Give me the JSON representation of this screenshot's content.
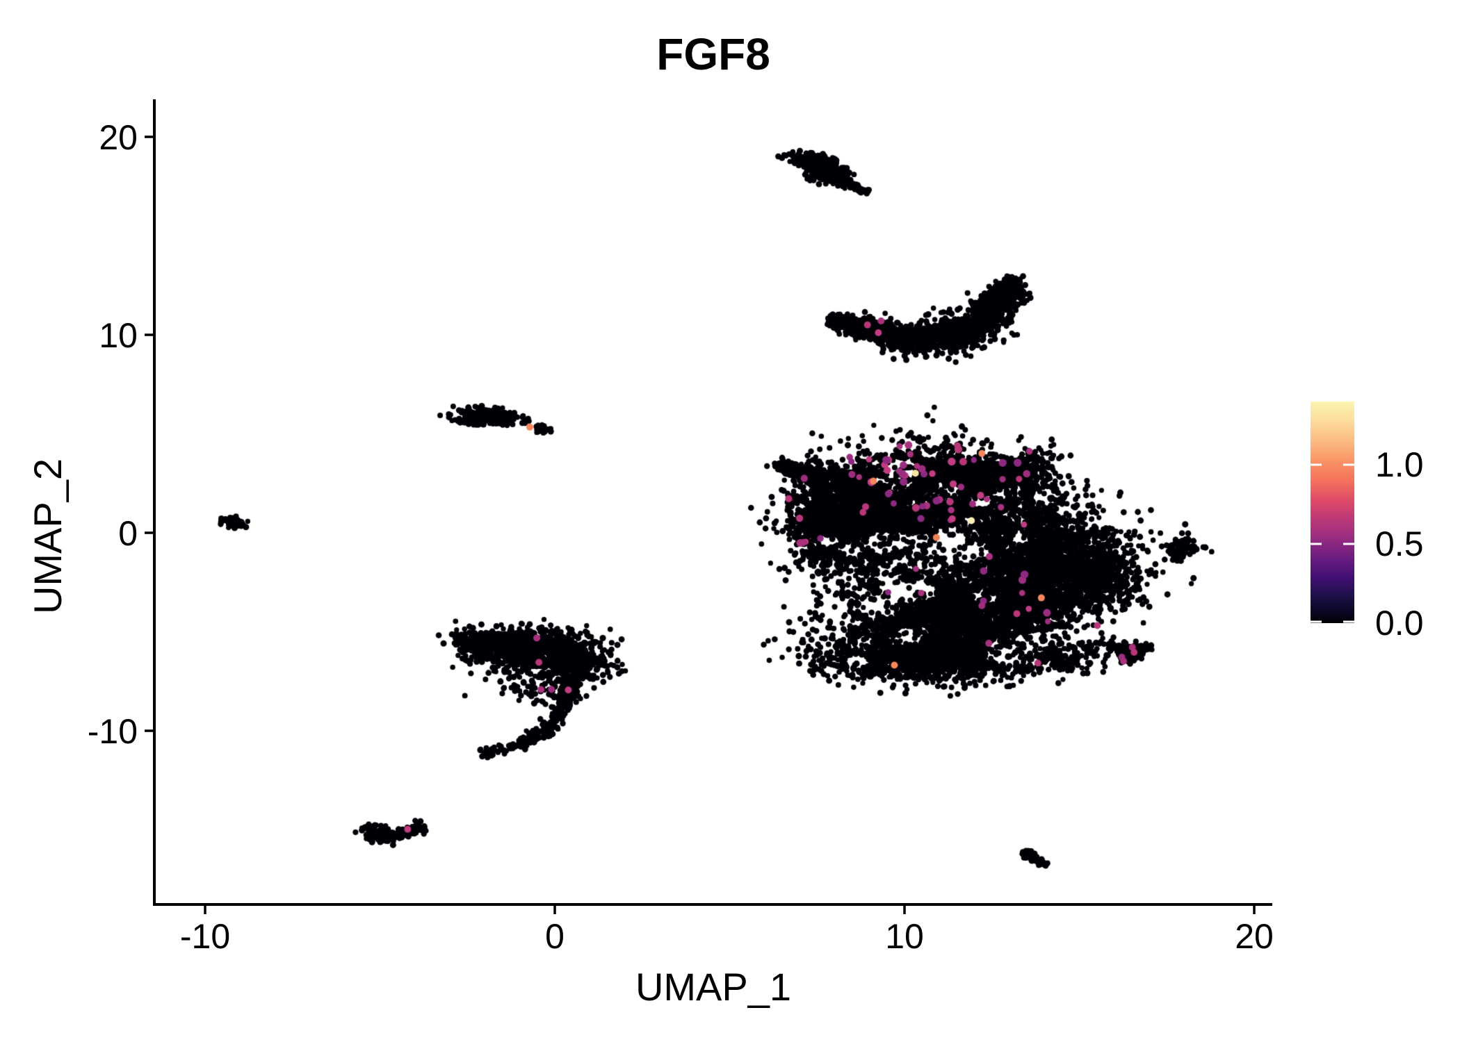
{
  "title": "FGF8",
  "axes": {
    "x": {
      "label": "UMAP_1",
      "tick_labels": [
        "-10",
        "0",
        "10",
        "20"
      ]
    },
    "y": {
      "label": "UMAP_2",
      "tick_labels": [
        "20",
        "10",
        "0",
        "-10"
      ]
    }
  },
  "legend": {
    "tick_labels": [
      "1.0",
      "0.5",
      "0.0"
    ]
  },
  "chart_data": {
    "type": "scatter",
    "title": "FGF8",
    "xlabel": "UMAP_1",
    "ylabel": "UMAP_2",
    "xlim": [
      -11.45,
      20.5
    ],
    "ylim": [
      -18.8,
      21.9
    ],
    "x_ticks": [
      -10,
      0,
      10,
      20
    ],
    "y_ticks": [
      20,
      10,
      0,
      -10
    ],
    "grid": false,
    "legend_position": "right",
    "point_color_default": "#000006",
    "colorbar": {
      "min": 0.0,
      "max": 1.4,
      "ticks": [
        1.0,
        0.5,
        0.0
      ],
      "gradient_top_to_bottom": [
        {
          "offset": 0.0,
          "color": "#FCF4B0"
        },
        {
          "offset": 0.08,
          "color": "#FDDE9D"
        },
        {
          "offset": 0.16,
          "color": "#FCC286"
        },
        {
          "offset": 0.23,
          "color": "#FAA671"
        },
        {
          "offset": 0.282,
          "color": "#F98E62"
        },
        {
          "offset": 0.36,
          "color": "#F4715C"
        },
        {
          "offset": 0.45,
          "color": "#DE4968"
        },
        {
          "offset": 0.52,
          "color": "#C03A76"
        },
        {
          "offset": 0.58,
          "color": "#A8327D"
        },
        {
          "offset": 0.641,
          "color": "#8B2880"
        },
        {
          "offset": 0.72,
          "color": "#641A80"
        },
        {
          "offset": 0.8,
          "color": "#3F0F72"
        },
        {
          "offset": 0.88,
          "color": "#1D1147"
        },
        {
          "offset": 0.95,
          "color": "#0A0723"
        },
        {
          "offset": 1.0,
          "color": "#000004"
        }
      ]
    },
    "palettes": {
      "magenta": [
        "#A8327D",
        "#B73779",
        "#9C2E7F",
        "#C23C82",
        "#8C2981"
      ],
      "orange": [
        "#F8875E",
        "#F07F52"
      ],
      "cream": [
        "#FBE3A4",
        "#FCEFB6"
      ]
    },
    "seed": 12345,
    "point_radius": 4.1,
    "highlight_radius": 5.0,
    "clusters": [
      {
        "name": "comet-top",
        "components": [
          {
            "t": "g",
            "cx": 7.45,
            "cy": 18.7,
            "sx": 0.42,
            "sy": 0.2,
            "rot": -28,
            "n": 230
          },
          {
            "t": "g",
            "cx": 7.8,
            "cy": 18.15,
            "sx": 0.28,
            "sy": 0.22,
            "rot": 0,
            "n": 120
          },
          {
            "t": "c",
            "pts": [
              [
                7.95,
                17.95
              ],
              [
                8.5,
                17.55
              ],
              [
                8.9,
                17.2
              ]
            ],
            "w": [
              0.12,
              0.06
            ],
            "n": 90
          }
        ]
      },
      {
        "name": "crescent",
        "components": [
          {
            "t": "c",
            "pts": [
              [
                7.95,
                10.75
              ],
              [
                9.2,
                10.2
              ],
              [
                10.6,
                9.65
              ],
              [
                11.9,
                10.3
              ],
              [
                12.75,
                11.6
              ],
              [
                13.1,
                12.75
              ]
            ],
            "w": [
              0.12,
              0.3,
              0.42,
              0.45,
              0.3,
              0.15
            ],
            "n": 1500
          }
        ]
      },
      {
        "name": "small-left",
        "components": [
          {
            "t": "g",
            "cx": -1.95,
            "cy": 5.9,
            "sx": 0.48,
            "sy": 0.2,
            "rot": -8,
            "n": 210
          },
          {
            "t": "g",
            "cx": -2.35,
            "cy": 5.65,
            "sx": 0.18,
            "sy": 0.14,
            "rot": 0,
            "n": 40
          },
          {
            "t": "c",
            "pts": [
              [
                -0.5,
                5.28
              ],
              [
                -0.16,
                5.12
              ]
            ],
            "w": [
              0.09,
              0.09
            ],
            "n": 22
          }
        ]
      },
      {
        "name": "tiny-far-left",
        "components": [
          {
            "t": "g",
            "cx": -9.17,
            "cy": 0.5,
            "sx": 0.2,
            "sy": 0.12,
            "rot": -25,
            "n": 45
          }
        ]
      },
      {
        "name": "main-right",
        "holes": {
          "n": 30,
          "x": [
            7.6,
            15.8
          ],
          "y": [
            -6.8,
            4.2
          ],
          "r": [
            0.28,
            0.62
          ],
          "drop": 0.82
        },
        "components": [
          {
            "t": "c",
            "pts": [
              [
                6.45,
                3.45
              ],
              [
                7.3,
                2.9
              ],
              [
                8.2,
                2.35
              ]
            ],
            "w": [
              0.1,
              0.45
            ],
            "n": 300
          },
          {
            "t": "g",
            "cx": 10.9,
            "cy": 2.1,
            "sx": 1.5,
            "sy": 1.1,
            "rot": 0,
            "n": 2700
          },
          {
            "t": "g",
            "cx": 12.6,
            "cy": 3.3,
            "sx": 0.75,
            "sy": 0.55,
            "rot": 0,
            "n": 450
          },
          {
            "t": "g",
            "cx": 8.6,
            "cy": 0.1,
            "sx": 0.95,
            "sy": 1.15,
            "rot": 0,
            "n": 1250
          },
          {
            "t": "g",
            "cx": 9.6,
            "cy": 1.4,
            "sx": 0.8,
            "sy": 0.8,
            "rot": 0,
            "n": 600
          },
          {
            "t": "g",
            "cx": 7.4,
            "cy": 0.8,
            "sx": 0.45,
            "sy": 0.9,
            "rot": 0,
            "n": 250
          },
          {
            "t": "g",
            "cx": 13.9,
            "cy": -1.3,
            "sx": 1.15,
            "sy": 1.35,
            "rot": 0,
            "n": 1600
          },
          {
            "t": "g",
            "cx": 15.6,
            "cy": -2.2,
            "sx": 0.6,
            "sy": 0.75,
            "rot": 0,
            "n": 380
          },
          {
            "t": "g",
            "cx": 13.4,
            "cy": -3.1,
            "sx": 1.2,
            "sy": 0.9,
            "rot": 0,
            "n": 650
          },
          {
            "t": "g",
            "cx": 11.2,
            "cy": -4.3,
            "sx": 1.55,
            "sy": 1.25,
            "rot": 0,
            "n": 2600
          },
          {
            "t": "g",
            "cx": 10.7,
            "cy": -6.4,
            "sx": 1.5,
            "sy": 0.5,
            "rot": 0,
            "n": 1250
          },
          {
            "t": "c",
            "pts": [
              [
                13.0,
                -5.3
              ],
              [
                14.8,
                -6.2
              ],
              [
                16.2,
                -6.2
              ],
              [
                16.85,
                -5.85
              ]
            ],
            "w": [
              0.5,
              0.12
            ],
            "n": 750
          }
        ]
      },
      {
        "name": "small-right",
        "components": [
          {
            "t": "g",
            "cx": 17.9,
            "cy": -0.75,
            "sx": 0.3,
            "sy": 0.26,
            "rot": 0,
            "n": 70
          },
          {
            "t": "c",
            "pts": [
              [
                17.85,
                -1.0
              ],
              [
                17.8,
                -1.45
              ]
            ],
            "w": [
              0.1,
              0.07
            ],
            "n": 18
          }
        ]
      },
      {
        "name": "hook-mid-left",
        "components": [
          {
            "t": "g",
            "cx": -1.3,
            "cy": -5.8,
            "sx": 0.75,
            "sy": 0.45,
            "rot": 0,
            "n": 420
          },
          {
            "t": "g",
            "cx": 0.0,
            "cy": -5.9,
            "sx": 0.7,
            "sy": 0.5,
            "rot": 0,
            "n": 420
          },
          {
            "t": "g",
            "cx": -2.0,
            "cy": -5.6,
            "sx": 0.45,
            "sy": 0.3,
            "rot": 0,
            "n": 180
          },
          {
            "t": "g",
            "cx": 0.6,
            "cy": -6.7,
            "sx": 0.5,
            "sy": 0.45,
            "rot": 0,
            "n": 200
          },
          {
            "t": "g",
            "cx": -0.3,
            "cy": -7.5,
            "sx": 0.8,
            "sy": 0.55,
            "rot": 0,
            "n": 130
          },
          {
            "t": "c",
            "pts": [
              [
                0.5,
                -7.2
              ],
              [
                0.3,
                -8.6
              ],
              [
                -0.2,
                -9.9
              ],
              [
                -1.2,
                -10.9
              ],
              [
                -2.1,
                -11.15
              ]
            ],
            "w": [
              0.18,
              0.1
            ],
            "n": 270
          }
        ]
      },
      {
        "name": "v-bottom-left",
        "components": [
          {
            "t": "c",
            "pts": [
              [
                -5.3,
                -14.85
              ],
              [
                -4.8,
                -15.35
              ],
              [
                -4.2,
                -15.15
              ],
              [
                -3.85,
                -14.85
              ]
            ],
            "w": [
              0.16,
              0.12
            ],
            "n": 150
          },
          {
            "t": "g",
            "cx": -4.85,
            "cy": -15.35,
            "sx": 0.25,
            "sy": 0.18,
            "rot": 0,
            "n": 60
          }
        ]
      },
      {
        "name": "streak-bottom-right",
        "components": [
          {
            "t": "c",
            "pts": [
              [
                13.45,
                -16.15
              ],
              [
                14.0,
                -16.8
              ]
            ],
            "w": [
              0.1,
              0.07
            ],
            "n": 55
          }
        ]
      }
    ],
    "highlight_regions": [
      {
        "x": [
          8.3,
          13.6
        ],
        "y": [
          0.3,
          4.5
        ],
        "count": 55,
        "palette": "magenta"
      },
      {
        "x": [
          6.6,
          7.7
        ],
        "y": [
          -0.6,
          3.0
        ],
        "count": 6,
        "palette": "magenta"
      },
      {
        "x": [
          9.2,
          14.2
        ],
        "y": [
          -5.2,
          -0.8
        ],
        "count": 12,
        "palette": "magenta"
      }
    ],
    "highlight_points": [
      {
        "x": 8.93,
        "y": 10.5,
        "color": "#B73779"
      },
      {
        "x": 9.32,
        "y": 10.7,
        "color": "#A8327D"
      },
      {
        "x": 9.24,
        "y": 10.1,
        "color": "#C23C82"
      },
      {
        "x": -0.72,
        "y": 5.33,
        "color": "#F8875E"
      },
      {
        "x": -0.52,
        "y": -5.33,
        "color": "#A8327D"
      },
      {
        "x": -0.46,
        "y": -6.56,
        "color": "#B73779"
      },
      {
        "x": -0.4,
        "y": -7.93,
        "color": "#A8327D"
      },
      {
        "x": -0.1,
        "y": -7.93,
        "color": "#9C2E7F"
      },
      {
        "x": 0.38,
        "y": -7.96,
        "color": "#C23C82"
      },
      {
        "x": -4.21,
        "y": -15.0,
        "color": "#C23C82"
      },
      {
        "x": 15.5,
        "y": -4.7,
        "color": "#B73779"
      },
      {
        "x": 16.5,
        "y": -5.8,
        "color": "#A8327D"
      },
      {
        "x": 16.55,
        "y": -6.05,
        "color": "#B73779"
      },
      {
        "x": 16.2,
        "y": -6.3,
        "color": "#9C2E7F"
      },
      {
        "x": 16.25,
        "y": -6.5,
        "color": "#A8327D"
      },
      {
        "x": 13.8,
        "y": -6.6,
        "color": "#B73779"
      },
      {
        "x": 12.4,
        "y": -5.6,
        "color": "#A8327D"
      },
      {
        "x": 13.2,
        "y": -4.1,
        "color": "#B73779"
      },
      {
        "x": 12.2,
        "y": -3.7,
        "color": "#9C2E7F"
      },
      {
        "x": 7.1,
        "y": -0.5,
        "color": "#A8327D"
      },
      {
        "x": 9.1,
        "y": 2.6,
        "color": "#F8875E"
      },
      {
        "x": 12.2,
        "y": 4.0,
        "color": "#F8875E"
      },
      {
        "x": 10.9,
        "y": -0.25,
        "color": "#F07F52"
      },
      {
        "x": 13.9,
        "y": -3.3,
        "color": "#F8875E"
      },
      {
        "x": 9.7,
        "y": -6.7,
        "color": "#F8875E"
      },
      {
        "x": 10.3,
        "y": 3.0,
        "color": "#FBE3A4"
      },
      {
        "x": 11.9,
        "y": 0.6,
        "color": "#FCEFB6"
      }
    ]
  }
}
